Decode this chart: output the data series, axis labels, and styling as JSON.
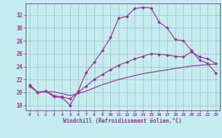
{
  "xlabel": "Windchill (Refroidissement éolien,°C)",
  "xlim": [
    -0.5,
    23.5
  ],
  "ylim": [
    17.2,
    33.8
  ],
  "xticks": [
    0,
    1,
    2,
    3,
    4,
    5,
    6,
    7,
    8,
    9,
    10,
    11,
    12,
    13,
    14,
    15,
    16,
    17,
    18,
    19,
    20,
    21,
    22,
    23
  ],
  "yticks": [
    18,
    20,
    22,
    24,
    26,
    28,
    30,
    32
  ],
  "bg_color": "#c5ecee",
  "line_color": "#993399",
  "grid_color": "#9bbfbf",
  "line1_x": [
    0,
    1,
    2,
    3,
    4,
    5,
    6,
    7,
    8,
    9,
    10,
    11,
    12,
    13,
    14,
    15,
    16,
    17,
    18,
    19,
    20,
    21,
    22,
    23
  ],
  "line1_y": [
    21.2,
    20.0,
    20.2,
    19.3,
    19.2,
    18.0,
    20.2,
    23.1,
    24.7,
    26.5,
    28.5,
    31.5,
    31.8,
    33.0,
    33.2,
    33.1,
    30.9,
    30.0,
    28.2,
    28.0,
    26.5,
    25.0,
    24.5,
    23.0
  ],
  "line2_x": [
    0,
    1,
    2,
    3,
    4,
    5,
    6,
    7,
    8,
    9,
    10,
    11,
    12,
    13,
    14,
    15,
    16,
    17,
    18,
    19,
    20,
    21,
    22,
    23
  ],
  "line2_y": [
    21.0,
    20.0,
    20.2,
    19.5,
    19.3,
    19.0,
    20.0,
    21.0,
    22.0,
    22.8,
    23.5,
    24.2,
    24.7,
    25.2,
    25.6,
    26.0,
    25.9,
    25.8,
    25.6,
    25.5,
    26.3,
    25.5,
    25.2,
    24.5
  ],
  "line3_x": [
    0,
    1,
    2,
    3,
    4,
    5,
    6,
    7,
    8,
    9,
    10,
    11,
    12,
    13,
    14,
    15,
    16,
    17,
    18,
    19,
    20,
    21,
    22,
    23
  ],
  "line3_y": [
    21.0,
    20.0,
    20.1,
    20.1,
    19.8,
    19.5,
    19.8,
    20.2,
    20.7,
    21.2,
    21.6,
    22.0,
    22.3,
    22.6,
    22.9,
    23.1,
    23.3,
    23.5,
    23.7,
    23.9,
    24.1,
    24.2,
    24.3,
    24.4
  ]
}
